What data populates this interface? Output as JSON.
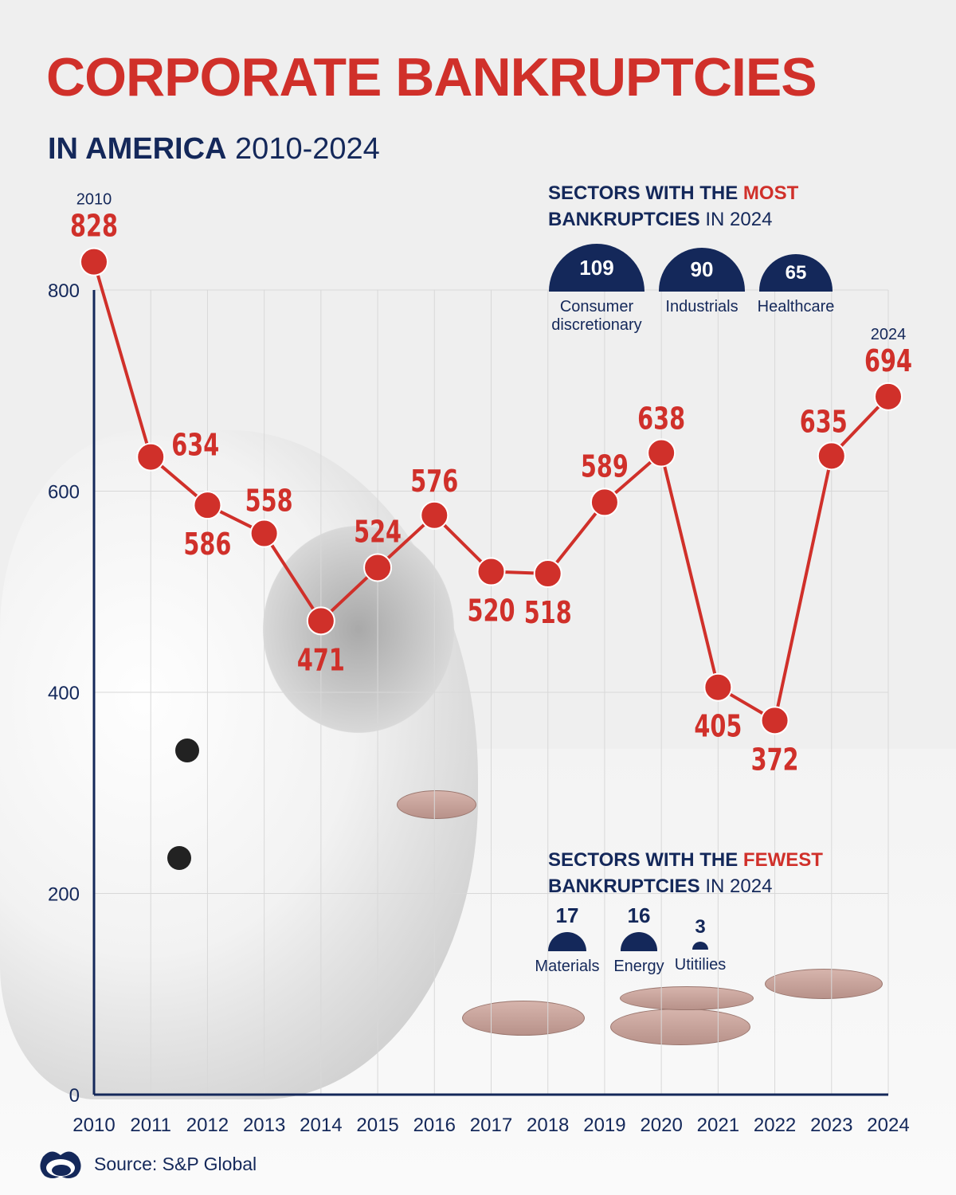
{
  "title": "CORPORATE BANKRUPTCIES",
  "subtitle": {
    "bold": "IN AMERICA",
    "range": "2010-2024"
  },
  "colors": {
    "red": "#d0302a",
    "navy": "#14285a"
  },
  "chart_data": {
    "type": "line",
    "x": [
      "2010",
      "2011",
      "2012",
      "2013",
      "2014",
      "2015",
      "2016",
      "2017",
      "2018",
      "2019",
      "2020",
      "2021",
      "2022",
      "2023",
      "2024"
    ],
    "values": [
      828,
      634,
      586,
      558,
      471,
      524,
      576,
      520,
      518,
      589,
      638,
      405,
      372,
      635,
      694
    ],
    "ylim": [
      0,
      800
    ],
    "yticks": [
      "0",
      "200",
      "400",
      "600",
      "800"
    ],
    "grid": true,
    "point_year_labels": {
      "first": "2010",
      "last": "2024"
    }
  },
  "most": {
    "title_a": "SECTORS WITH THE ",
    "title_b": "MOST",
    "title_c": "BANKRUPTCIES",
    "title_d": " IN 2024",
    "sectors": [
      {
        "value": "109",
        "label": "Consumer discretionary"
      },
      {
        "value": "90",
        "label": "Industrials"
      },
      {
        "value": "65",
        "label": "Healthcare"
      }
    ]
  },
  "fewest": {
    "title_a": "SECTORS WITH THE ",
    "title_b": "FEWEST",
    "title_c": "BANKRUPTCIES",
    "title_d": " IN 2024",
    "sectors": [
      {
        "value": "17",
        "label": "Materials"
      },
      {
        "value": "16",
        "label": "Energy"
      },
      {
        "value": "3",
        "label": "Utitilies"
      }
    ]
  },
  "source": "Source: S&P Global"
}
